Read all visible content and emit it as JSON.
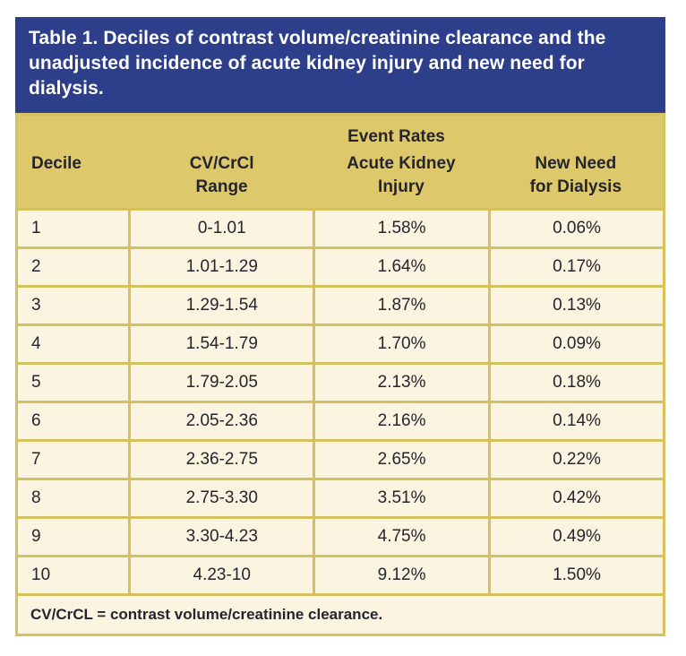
{
  "colors": {
    "title_background": "#2d3e8b",
    "title_text": "#ffffff",
    "header_band": "#ddc96b",
    "row_background": "#fbf4e0",
    "grid_border": "#d6c15f",
    "body_text": "#26242c"
  },
  "title": "Table 1. Deciles of contrast volume/creatinine clearance and the unadjusted incidence of acute kidney injury and new need for dialysis.",
  "header": {
    "event_rates_label": "Event Rates",
    "columns": [
      {
        "line1": "Decile",
        "line2": ""
      },
      {
        "line1": "CV/CrCl",
        "line2": "Range"
      },
      {
        "line1": "Acute Kidney",
        "line2": "Injury"
      },
      {
        "line1": "New Need",
        "line2": "for Dialysis"
      }
    ]
  },
  "rows": [
    {
      "decile": "1",
      "range": "0-1.01",
      "aki": "1.58%",
      "dialysis": "0.06%"
    },
    {
      "decile": "2",
      "range": "1.01-1.29",
      "aki": "1.64%",
      "dialysis": "0.17%"
    },
    {
      "decile": "3",
      "range": "1.29-1.54",
      "aki": "1.87%",
      "dialysis": "0.13%"
    },
    {
      "decile": "4",
      "range": "1.54-1.79",
      "aki": "1.70%",
      "dialysis": "0.09%"
    },
    {
      "decile": "5",
      "range": "1.79-2.05",
      "aki": "2.13%",
      "dialysis": "0.18%"
    },
    {
      "decile": "6",
      "range": "2.05-2.36",
      "aki": "2.16%",
      "dialysis": "0.14%"
    },
    {
      "decile": "7",
      "range": "2.36-2.75",
      "aki": "2.65%",
      "dialysis": "0.22%"
    },
    {
      "decile": "8",
      "range": "2.75-3.30",
      "aki": "3.51%",
      "dialysis": "0.42%"
    },
    {
      "decile": "9",
      "range": "3.30-4.23",
      "aki": "4.75%",
      "dialysis": "0.49%"
    },
    {
      "decile": "10",
      "range": "4.23-10",
      "aki": "9.12%",
      "dialysis": "1.50%"
    }
  ],
  "footnote": "CV/CrCL = contrast volume/creatinine clearance."
}
